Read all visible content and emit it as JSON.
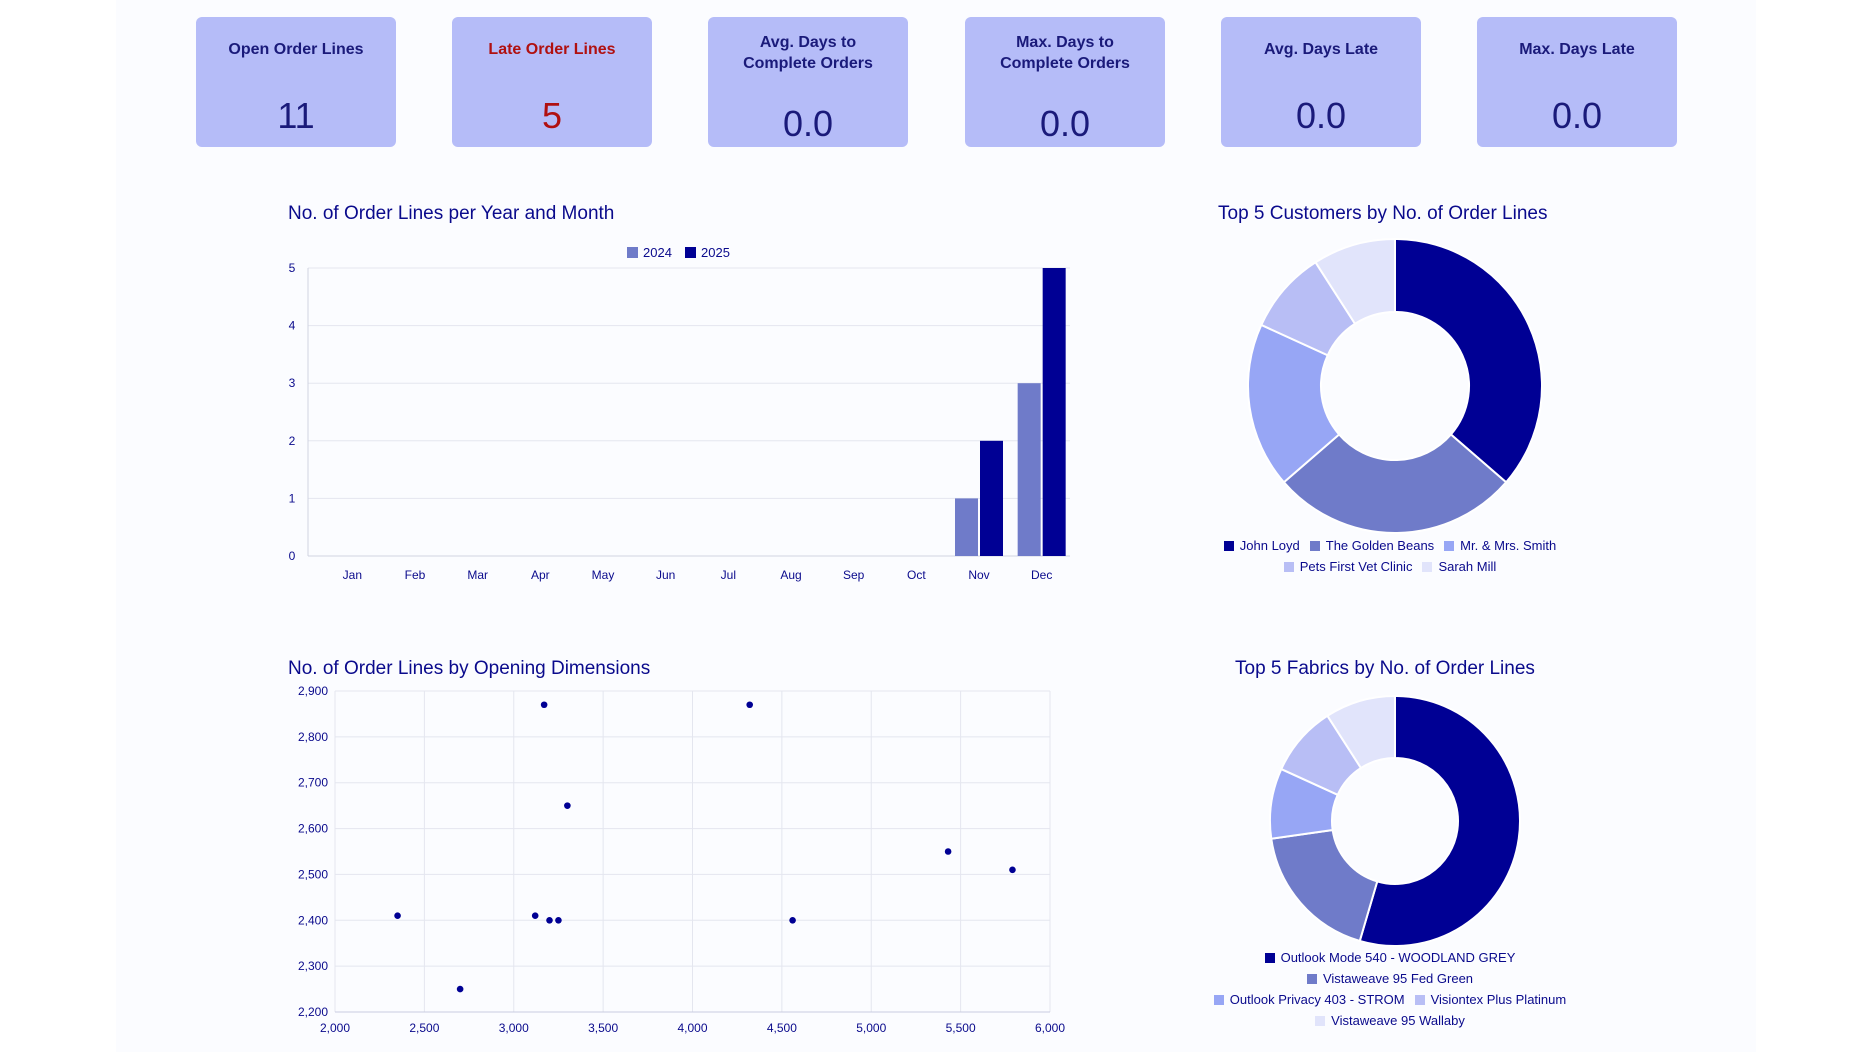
{
  "kpis": [
    {
      "label": "Open Order Lines",
      "value": "11"
    },
    {
      "label": "Late Order Lines",
      "value": "5"
    },
    {
      "label": "Avg. Days to Complete Orders",
      "value": "0.0"
    },
    {
      "label": "Max. Days to Complete Orders",
      "value": "0.0"
    },
    {
      "label": "Avg. Days Late",
      "value": "0.0"
    },
    {
      "label": "Max. Days Late",
      "value": "0.0"
    }
  ],
  "colors": {
    "kpi_bg": "#b5bcf8",
    "late_text": "#b01010",
    "series_2024": "#6f7bc9",
    "series_2025": "#000094",
    "slice_1": "#000094",
    "slice_2": "#6f7bc9",
    "slice_3": "#97a6f5",
    "slice_4": "#b8bef5",
    "slice_5": "#e1e4fb"
  },
  "chart_data": [
    {
      "type": "bar",
      "title": "No. of Order Lines per Year and Month",
      "categories": [
        "Jan",
        "Feb",
        "Mar",
        "Apr",
        "May",
        "Jun",
        "Jul",
        "Aug",
        "Sep",
        "Oct",
        "Nov",
        "Dec"
      ],
      "series": [
        {
          "name": "2024",
          "values": [
            0,
            0,
            0,
            0,
            0,
            0,
            0,
            0,
            0,
            0,
            1,
            3
          ]
        },
        {
          "name": "2025",
          "values": [
            0,
            0,
            0,
            0,
            0,
            0,
            0,
            0,
            0,
            0,
            2,
            5
          ]
        }
      ],
      "ylim": [
        0,
        5
      ],
      "yticks": [
        0,
        1,
        2,
        3,
        4,
        5
      ],
      "legend": "top"
    },
    {
      "type": "pie",
      "title": "Top 5 Customers by No. of Order Lines",
      "donut": true,
      "labels": [
        "John Loyd",
        "The Golden Beans",
        "Mr. & Mrs. Smith",
        "Pets First Vet Clinic",
        "Sarah Mill"
      ],
      "values": [
        4,
        3,
        2,
        1,
        1
      ],
      "legend_rows": [
        [
          0,
          1,
          2
        ],
        [
          3,
          4
        ]
      ],
      "legend": "bottom"
    },
    {
      "type": "scatter",
      "title": "No. of Order Lines by Opening Dimensions",
      "x": [
        2350,
        2700,
        3120,
        3170,
        3200,
        3250,
        3300,
        4320,
        4560,
        5430,
        5790
      ],
      "y": [
        2410,
        2250,
        2410,
        2870,
        2400,
        2400,
        2650,
        2870,
        2400,
        2550,
        2510
      ],
      "xlim": [
        2000,
        6000
      ],
      "ylim": [
        2200,
        2900
      ],
      "xticks": [
        "2,000",
        "2,500",
        "3,000",
        "3,500",
        "4,000",
        "4,500",
        "5,000",
        "5,500",
        "6,000"
      ],
      "yticks": [
        "2,200",
        "2,300",
        "2,400",
        "2,500",
        "2,600",
        "2,700",
        "2,800",
        "2,900"
      ],
      "grid": true
    },
    {
      "type": "pie",
      "title": "Top 5 Fabrics by No. of Order Lines",
      "donut": true,
      "labels": [
        "Outlook Mode 540 - WOODLAND GREY",
        "Vistaweave 95 Fed Green",
        "Outlook Privacy 403 - STROM",
        "Visiontex Plus Platinum",
        "Vistaweave 95 Wallaby"
      ],
      "values": [
        6,
        2,
        1,
        1,
        1
      ],
      "legend_rows": [
        [
          0
        ],
        [
          1
        ],
        [
          2,
          3
        ],
        [
          4
        ]
      ],
      "legend": "bottom"
    }
  ]
}
